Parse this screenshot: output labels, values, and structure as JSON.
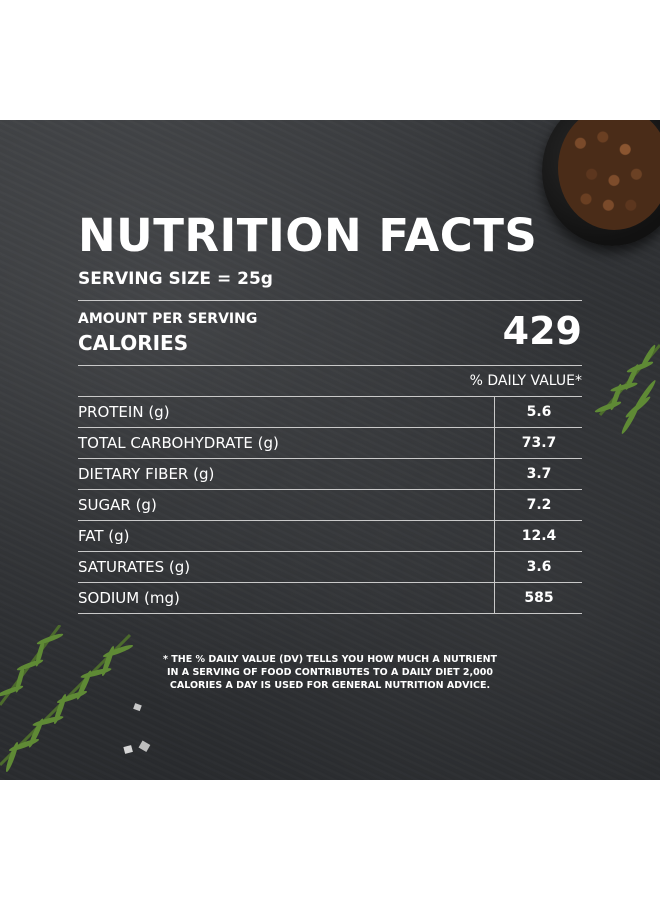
{
  "panel": {
    "title": "NUTRITION FACTS",
    "serving_size": "SERVING SIZE = 25g",
    "amount_per_serving": "AMOUNT PER SERVING",
    "calories_label": "CALORIES",
    "calories_value": "429",
    "daily_value_header": "% DAILY VALUE*",
    "nutrients": [
      {
        "name": "PROTEIN (g)",
        "value": "5.6"
      },
      {
        "name": "TOTAL CARBOHYDRATE (g)",
        "value": "73.7"
      },
      {
        "name": "DIETARY FIBER (g)",
        "value": "3.7"
      },
      {
        "name": "SUGAR (g)",
        "value": "7.2"
      },
      {
        "name": "FAT (g)",
        "value": "12.4"
      },
      {
        "name": "SATURATES (g)",
        "value": "3.6"
      },
      {
        "name": "SODIUM (mg)",
        "value": "585"
      }
    ]
  },
  "footnote": {
    "line1": "* THE % DAILY VALUE (DV) TELLS YOU HOW MUCH A NUTRIENT",
    "line2": "IN A SERVING OF FOOD CONTRIBUTES TO A DAILY DIET 2,000",
    "line3": "CALORIES A DAY IS USED FOR GENERAL NUTRITION ADVICE."
  },
  "colors": {
    "background": "#2e3033",
    "text": "#ffffff",
    "rule": "#c9c9c9"
  }
}
